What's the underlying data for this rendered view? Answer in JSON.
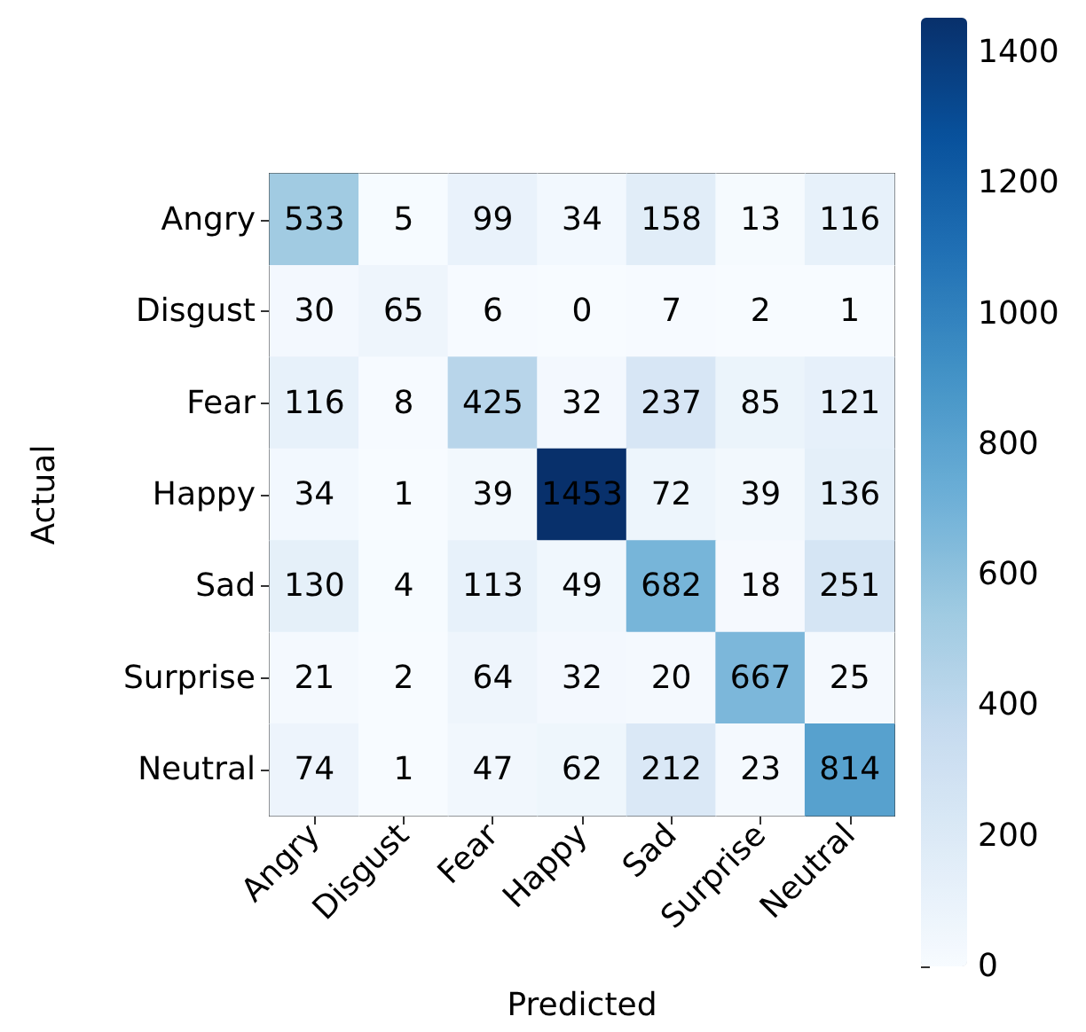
{
  "chart_data": {
    "type": "heatmap",
    "xlabel": "Predicted",
    "ylabel": "Actual",
    "categories": [
      "Angry",
      "Disgust",
      "Fear",
      "Happy",
      "Sad",
      "Surprise",
      "Neutral"
    ],
    "y_categories": [
      "Angry",
      "Disgust",
      "Fear",
      "Happy",
      "Sad",
      "Surprise",
      "Neutral"
    ],
    "cells": [
      [
        533,
        5,
        99,
        34,
        158,
        13,
        116
      ],
      [
        30,
        65,
        6,
        0,
        7,
        2,
        1
      ],
      [
        116,
        8,
        425,
        32,
        237,
        85,
        121
      ],
      [
        34,
        1,
        39,
        1453,
        72,
        39,
        136
      ],
      [
        130,
        4,
        113,
        49,
        682,
        18,
        251
      ],
      [
        21,
        2,
        64,
        32,
        20,
        667,
        25
      ],
      [
        74,
        1,
        47,
        62,
        212,
        23,
        814
      ]
    ],
    "clim": [
      0,
      1453
    ],
    "cticks": [
      0,
      200,
      400,
      600,
      800,
      1000,
      1200,
      1400
    ],
    "data_labels": true
  }
}
